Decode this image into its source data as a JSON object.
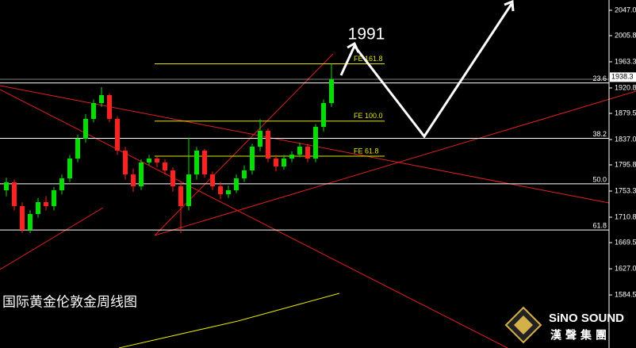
{
  "chart_data": {
    "type": "candlestick",
    "title": "国际黄金伦敦金周线图",
    "annotation": "1991",
    "brand": {
      "name": "SiNO SOUND",
      "subtitle": "漢聲集團"
    },
    "up_color": "#00e000",
    "down_color": "#ff2020",
    "open": [
      1754.6,
      1767.5,
      1728.8,
      1690.2,
      1715.9,
      1735.3,
      1728.8,
      1754.6,
      1773.9,
      1806.1,
      1838.3,
      1870.5,
      1896.3,
      1909.1,
      1870.5,
      1819.0,
      1780.3,
      1761.0,
      1799.7,
      1806.1,
      1799.7,
      1786.8,
      1761.0,
      1728.8,
      1780.3,
      1819.0,
      1780.3,
      1761.0,
      1748.1,
      1754.6,
      1773.9,
      1786.8,
      1825.4,
      1851.2,
      1806.1,
      1793.2,
      1806.1,
      1812.5,
      1825.4,
      1806.1,
      1857.6,
      1896.3
    ],
    "high": [
      1775,
      1772,
      1735,
      1722,
      1742,
      1745,
      1760,
      1780,
      1812,
      1845,
      1878,
      1902,
      1922,
      1912,
      1875,
      1825,
      1790,
      1805,
      1812,
      1810,
      1805,
      1792,
      1768,
      1840,
      1825,
      1822,
      1785,
      1768,
      1762,
      1780,
      1795,
      1830,
      1870,
      1855,
      1812,
      1812,
      1818,
      1832,
      1830,
      1862,
      1902,
      1960
    ],
    "low": [
      1745,
      1722,
      1685,
      1685,
      1710,
      1722,
      1722,
      1748,
      1768,
      1800,
      1832,
      1865,
      1890,
      1865,
      1812,
      1772,
      1752,
      1755,
      1795,
      1792,
      1780,
      1752,
      1685,
      1722,
      1772,
      1775,
      1755,
      1740,
      1742,
      1750,
      1768,
      1780,
      1818,
      1800,
      1785,
      1788,
      1800,
      1808,
      1800,
      1800,
      1850,
      1890
    ],
    "close": [
      1767.5,
      1728.8,
      1690.2,
      1715.9,
      1735.3,
      1728.8,
      1754.6,
      1773.9,
      1806.1,
      1838.3,
      1870.5,
      1896.3,
      1909.1,
      1870.5,
      1819.0,
      1780.3,
      1761.0,
      1799.7,
      1806.1,
      1799.7,
      1786.8,
      1761.0,
      1728.8,
      1780.3,
      1819.0,
      1780.3,
      1761.0,
      1748.1,
      1754.6,
      1773.9,
      1786.8,
      1825.4,
      1851.2,
      1806.1,
      1793.2,
      1806.1,
      1812.5,
      1825.4,
      1806.1,
      1857.6,
      1896.3,
      1934.9
    ],
    "fib_levels": [
      {
        "label": "23.6",
        "value": 1929
      },
      {
        "label": "38.2",
        "value": 1839
      },
      {
        "label": "50.0",
        "value": 1765
      },
      {
        "label": "61.8",
        "value": 1690
      }
    ],
    "fe_levels": [
      {
        "label": "FE 161.8",
        "value": 1960
      },
      {
        "label": "FE 100.0",
        "value": 1867
      },
      {
        "label": "FE 61.8",
        "value": 1810
      }
    ],
    "current_price": 1938.3,
    "ylim": [
      1498.3,
      2063.7
    ],
    "yticks": [
      {
        "value": 2047.0,
        "label": "2047.0"
      },
      2005.8,
      1963.3,
      1920.8,
      1879.5,
      {
        "value": 1837.0,
        "label": "1837.0"
      },
      1795.8,
      1753.3,
      1710.8,
      1669.5,
      {
        "value": 1627.0,
        "label": "1627.0"
      },
      1584.5
    ]
  }
}
